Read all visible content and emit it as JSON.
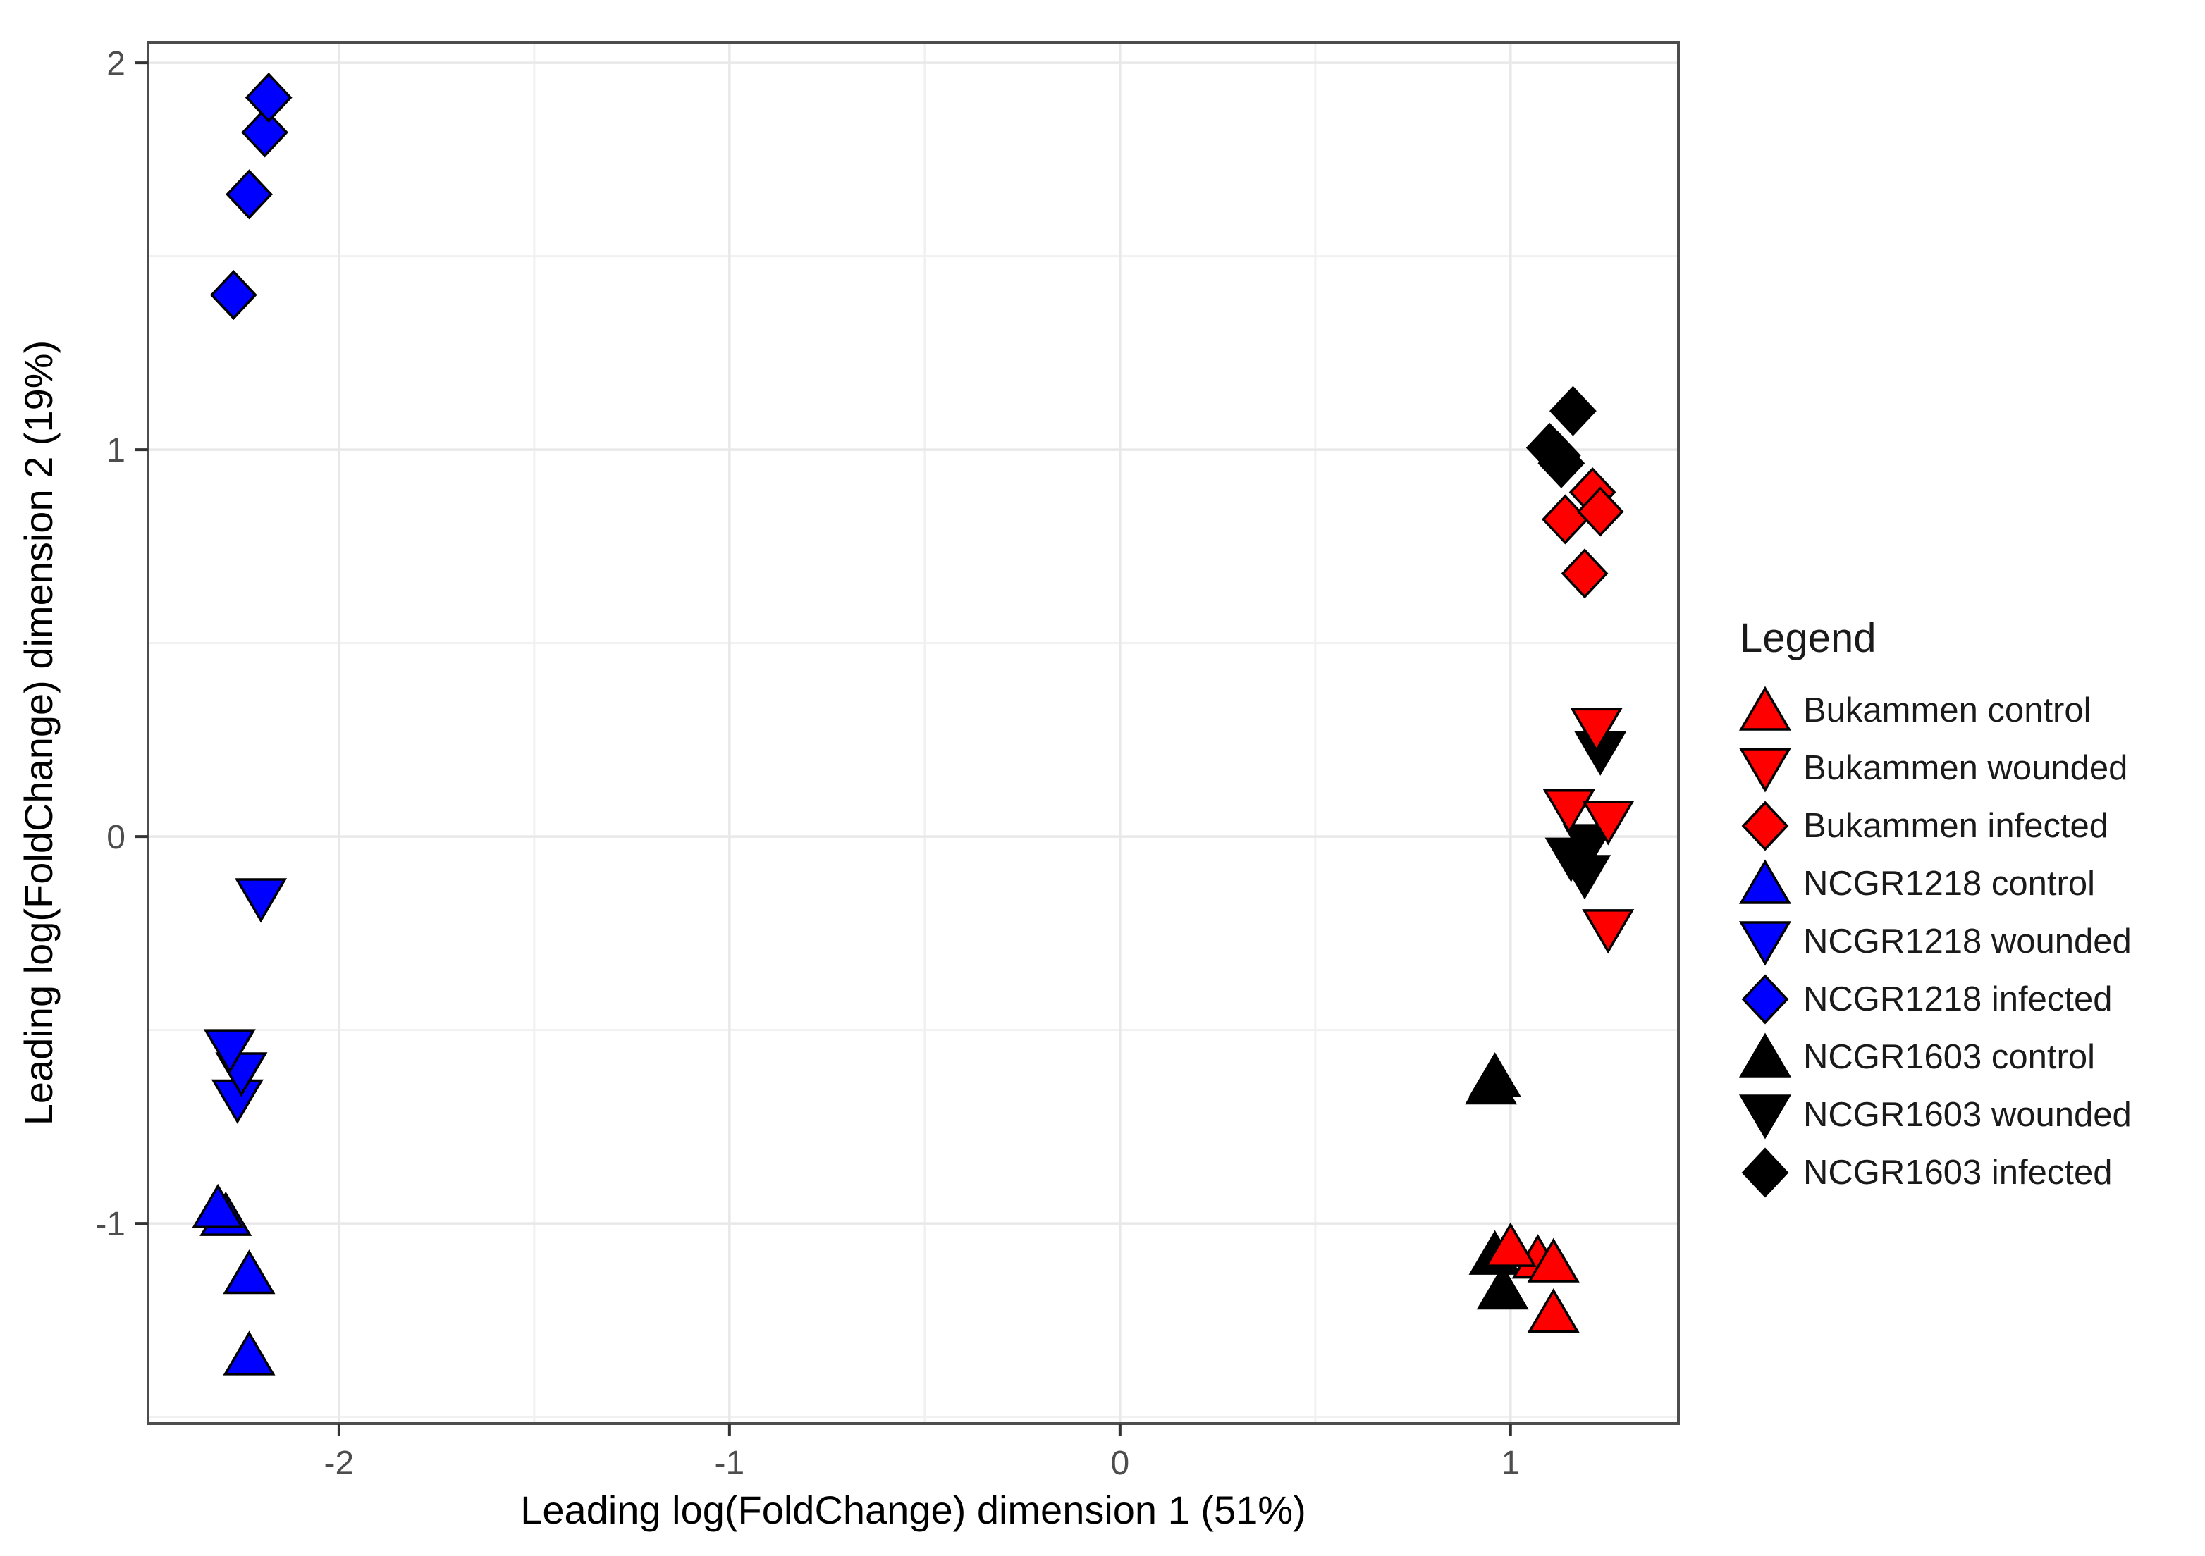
{
  "figure": {
    "background": "#ffffff"
  },
  "axes": {
    "x": {
      "title": "Leading log(FoldChange) dimension 1 (51%)",
      "tick_labels": [
        "-2",
        "-1",
        "0",
        "1"
      ],
      "ticks": [
        -2,
        -1,
        0,
        1
      ],
      "minor_ticks": [
        -1.5,
        -0.5,
        0.5
      ],
      "range": [
        -2.489,
        1.43
      ]
    },
    "y": {
      "title": "Leading log(FoldChange) dimension 2 (19%)",
      "tick_labels": [
        "2",
        "1",
        "0",
        "-1"
      ],
      "ticks": [
        2,
        1,
        0,
        -1
      ],
      "minor_ticks": [
        1.5,
        0.5,
        -0.5,
        -1.5
      ],
      "range": [
        -1.517,
        2.053
      ]
    }
  },
  "legend": {
    "title": "Legend",
    "items": [
      {
        "label": "Bukammen control",
        "shape": "triangle-up",
        "fill": "#ff0000"
      },
      {
        "label": "Bukammen wounded",
        "shape": "triangle-down",
        "fill": "#ff0000"
      },
      {
        "label": "Bukammen infected",
        "shape": "diamond",
        "fill": "#ff0000"
      },
      {
        "label": "NCGR1218 control",
        "shape": "triangle-up",
        "fill": "#0000ff"
      },
      {
        "label": "NCGR1218 wounded",
        "shape": "triangle-down",
        "fill": "#0000ff"
      },
      {
        "label": "NCGR1218 infected",
        "shape": "diamond",
        "fill": "#0000ff"
      },
      {
        "label": "NCGR1603 control",
        "shape": "triangle-up",
        "fill": "#000000"
      },
      {
        "label": "NCGR1603 wounded",
        "shape": "triangle-down",
        "fill": "#000000"
      },
      {
        "label": "NCGR1603 infected",
        "shape": "diamond",
        "fill": "#000000"
      }
    ]
  },
  "chart_data": {
    "type": "scatter",
    "title": "",
    "xlabel": "Leading log(FoldChange) dimension 1 (51%)",
    "ylabel": "Leading log(FoldChange) dimension 2 (19%)",
    "xlim": [
      -2.489,
      1.43
    ],
    "ylim": [
      -1.517,
      2.053
    ],
    "x_ticks": [
      -2,
      -1,
      0,
      1
    ],
    "y_ticks": [
      -1,
      0,
      1,
      2
    ],
    "grid": "major and minor, light gray on white panel",
    "legend_position": "right",
    "series": [
      {
        "name": "NCGR1603 infected",
        "shape": "diamond",
        "fill": "#000000",
        "points": [
          [
            1.1,
            1.005
          ],
          [
            1.13,
            0.965
          ],
          [
            1.12,
            0.985
          ],
          [
            1.16,
            1.1
          ]
        ]
      },
      {
        "name": "NCGR1603 wounded",
        "shape": "triangle-down",
        "fill": "#000000",
        "points": [
          [
            1.2,
            -0.02
          ],
          [
            1.155,
            -0.055
          ],
          [
            1.19,
            -0.1
          ],
          [
            1.23,
            0.22
          ]
        ]
      },
      {
        "name": "NCGR1603 control",
        "shape": "triangle-up",
        "fill": "#000000",
        "points": [
          [
            0.95,
            -0.64
          ],
          [
            0.96,
            -0.62
          ],
          [
            0.96,
            -1.08
          ],
          [
            0.98,
            -1.17
          ]
        ]
      },
      {
        "name": "Bukammen infected",
        "shape": "diamond",
        "fill": "#ff0000",
        "points": [
          [
            1.21,
            0.89
          ],
          [
            1.14,
            0.82
          ],
          [
            1.23,
            0.84
          ],
          [
            1.19,
            0.68
          ]
        ]
      },
      {
        "name": "Bukammen wounded",
        "shape": "triangle-down",
        "fill": "#ff0000",
        "points": [
          [
            1.15,
            0.07
          ],
          [
            1.25,
            0.04
          ],
          [
            1.22,
            0.28
          ],
          [
            1.25,
            -0.24
          ]
        ]
      },
      {
        "name": "Bukammen control",
        "shape": "triangle-up",
        "fill": "#ff0000",
        "points": [
          [
            1.07,
            -1.09
          ],
          [
            1.11,
            -1.1
          ],
          [
            1.0,
            -1.06
          ],
          [
            1.11,
            -1.23
          ]
        ]
      },
      {
        "name": "NCGR1218 infected",
        "shape": "diamond",
        "fill": "#0000ff",
        "points": [
          [
            -2.27,
            1.4
          ],
          [
            -2.23,
            1.66
          ],
          [
            -2.19,
            1.82
          ],
          [
            -2.18,
            1.91
          ]
        ]
      },
      {
        "name": "NCGR1218 wounded",
        "shape": "triangle-down",
        "fill": "#0000ff",
        "points": [
          [
            -2.26,
            -0.68
          ],
          [
            -2.25,
            -0.61
          ],
          [
            -2.28,
            -0.55
          ],
          [
            -2.2,
            -0.16
          ]
        ]
      },
      {
        "name": "NCGR1218 control",
        "shape": "triangle-up",
        "fill": "#0000ff",
        "points": [
          [
            -2.29,
            -0.98
          ],
          [
            -2.31,
            -0.96
          ],
          [
            -2.23,
            -1.13
          ],
          [
            -2.23,
            -1.34
          ]
        ]
      }
    ]
  },
  "colors": {
    "red": "#ff0000",
    "blue": "#0000ff",
    "black": "#000000",
    "panel_background": "#ffffff",
    "grid_major": "#e8e8e8",
    "grid_minor": "#f1f1f1",
    "panel_border": "#4d4d4d",
    "tick_mark": "#333333",
    "tick_label": "#4d4d4d",
    "axis_title": "#000000",
    "legend_text": "#1a1a1a",
    "marker_outline": "#000000"
  }
}
